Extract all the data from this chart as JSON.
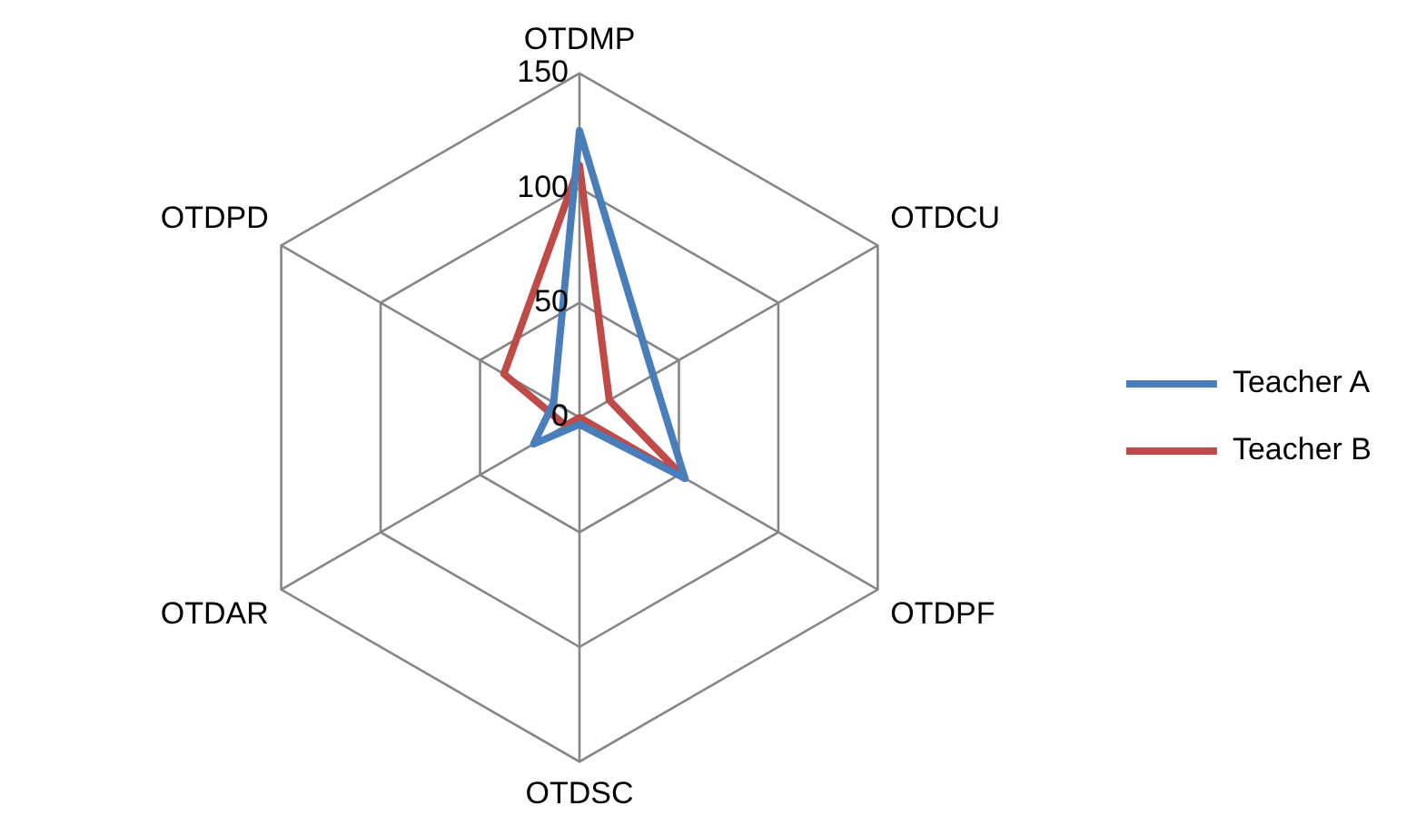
{
  "chart_data": {
    "type": "radar",
    "categories": [
      "OTDMP",
      "OTDCU",
      "OTDPF",
      "OTDSC",
      "OTDAR",
      "OTDPD"
    ],
    "series": [
      {
        "name": "Teacher A",
        "color": "#4a7ebb",
        "values": [
          125,
          37,
          53,
          3,
          23,
          13
        ]
      },
      {
        "name": "Teacher B",
        "color": "#be4b48",
        "values": [
          110,
          15,
          53,
          0,
          7,
          38
        ]
      }
    ],
    "ylim": [
      0,
      150
    ],
    "yticks": [
      0,
      50,
      100,
      150
    ],
    "grid": true,
    "legend": "right",
    "marker": "none"
  }
}
